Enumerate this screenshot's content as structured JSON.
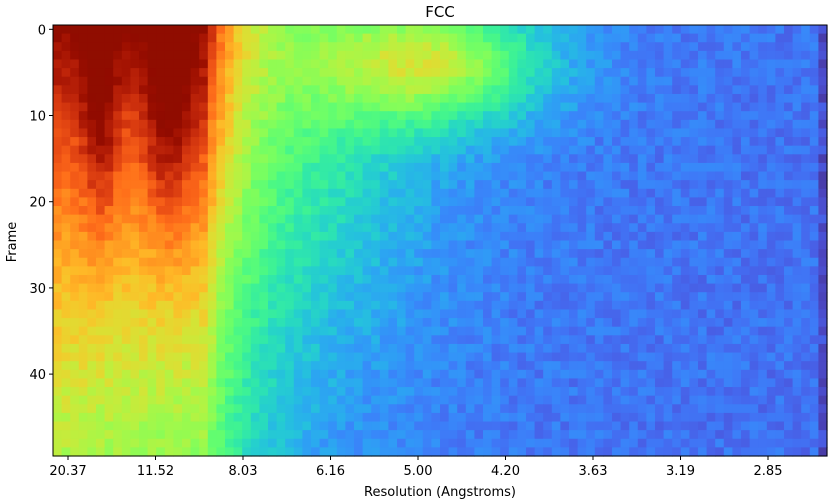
{
  "chart_data": {
    "type": "heatmap",
    "title": "FCC",
    "xlabel": "Resolution (Angstroms)",
    "ylabel": "Frame",
    "x_tick_labels": [
      "20.37",
      "11.52",
      "8.03",
      "6.16",
      "5.00",
      "4.20",
      "3.63",
      "3.19",
      "2.85"
    ],
    "y_tick_labels": [
      "0",
      "10",
      "20",
      "30",
      "40"
    ],
    "y_ticks": [
      0,
      10,
      20,
      30,
      40
    ],
    "frames": 50,
    "resolution_bins": 90,
    "colormap": "turbo",
    "value_range": [
      0,
      1
    ],
    "grid": false,
    "features": [
      {
        "description": "high correlation band near 20-12 A, peaking dark red around 10 A in early frames",
        "resolution_A": [
          20.37,
          9.5
        ],
        "frames": [
          0,
          25
        ]
      },
      {
        "description": "secondary yellow/orange peak near 4.7 A in early frames",
        "resolution_A": [
          5.3,
          4.2
        ],
        "frames": [
          1,
          14
        ]
      },
      {
        "description": "correlation decays toward dark blue at high resolution and later frames",
        "resolution_A": [
          4.0,
          2.5
        ],
        "frames": [
          15,
          49
        ]
      }
    ]
  }
}
